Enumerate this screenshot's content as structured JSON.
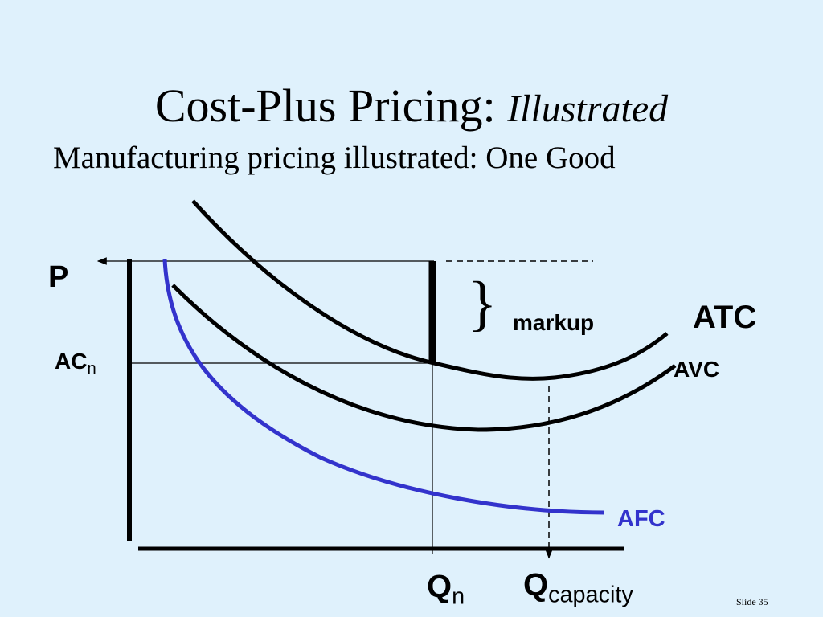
{
  "slide": {
    "title": "Cost-Plus Pricing:",
    "title_emphasis": "Illustrated",
    "subtitle": "Manufacturing pricing illustrated:  One Good",
    "footer": "Slide 35"
  },
  "diagram": {
    "y_label": "P",
    "cost_label": {
      "main": "AC",
      "sub": "n"
    },
    "markup_brace": "}",
    "markup_label": "markup",
    "curves": [
      {
        "label": "ATC"
      },
      {
        "label": "AVC"
      },
      {
        "label": "AFC"
      }
    ],
    "x_labels": [
      {
        "main": "Q",
        "sub": "n"
      },
      {
        "main": "Q",
        "sub": "capacity"
      }
    ]
  }
}
